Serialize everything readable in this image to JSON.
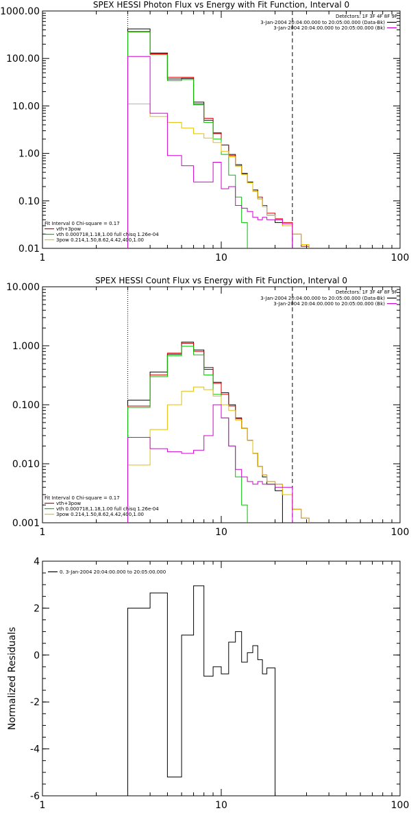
{
  "chart_data": [
    {
      "type": "line",
      "title": "SPEX HESSI Photon Flux vs Energy with Fit Function, Interval 0",
      "xlabel": "",
      "ylabel": "",
      "xscale": "log",
      "yscale": "log",
      "xlim": [
        1,
        100
      ],
      "ylim": [
        0.01,
        1000
      ],
      "xticks": [
        1,
        10,
        100
      ],
      "xticklabels": [
        "1",
        "10",
        "100"
      ],
      "yticks": [
        0.01,
        0.1,
        1,
        10,
        100,
        1000
      ],
      "yticklabels": [
        "0.01",
        "0.10",
        "1.00",
        "10.00",
        "100.00",
        "1000.00"
      ],
      "detectors_text": "Detectors: 1F 3F 4F 8F 9F",
      "legend_top_right": [
        {
          "text": "3-Jan-2004 20:04:00.000 to 20:05:00.000 (Data-Bk)",
          "color": "#000000"
        },
        {
          "text": "3-Jan-2004 20:04:00.000 to 20:05:00.000 (Bk)",
          "color": "#d000d0"
        }
      ],
      "legend_bottom_left": [
        {
          "text": "Fit Interval 0   Chi-square = 0.17",
          "color": "#000000"
        },
        {
          "text": "vth+3pow",
          "color": "#d00000"
        },
        {
          "text": "vth 0.000718,1.18,1.00   full chisq 1.26e-04",
          "color": "#00c000"
        },
        {
          "text": "3pow 0.214,1.50,8.62,4.42,400,1.00",
          "color": "#e0c000"
        }
      ],
      "edges": [
        3,
        4,
        5,
        6,
        7,
        8,
        9,
        10,
        11,
        12,
        13,
        14,
        15,
        16,
        17,
        18,
        20,
        22,
        25,
        28,
        31
      ],
      "series": [
        {
          "name": "Data-Bk",
          "color": "#000000",
          "values": [
            420,
            130,
            37,
            38,
            12,
            5.0,
            2.7,
            1.5,
            0.95,
            0.58,
            0.38,
            0.25,
            0.17,
            0.11,
            0.08,
            0.05,
            0.035,
            0.03
          ]
        },
        {
          "name": "vth+3pow",
          "color": "#d00000",
          "values": [
            370,
            125,
            40,
            40,
            11,
            5.5,
            2.6,
            1.5,
            0.9,
            0.55,
            0.37,
            0.24,
            0.16,
            0.12,
            0.08,
            0.055,
            0.042,
            0.035,
            0.02,
            0.011
          ]
        },
        {
          "name": "vth",
          "color": "#00c000",
          "values": [
            360,
            120,
            34,
            36,
            10.5,
            4.5,
            2.0,
            0.95,
            0.35,
            0.12,
            0.035,
            0.008
          ]
        },
        {
          "name": "3pow",
          "color": "#e0c000",
          "values": [
            11,
            6.0,
            4.5,
            3.4,
            2.6,
            2.1,
            1.7,
            1.1,
            0.85,
            0.54,
            0.36,
            0.24,
            0.16,
            0.11,
            0.075,
            0.05,
            0.04,
            0.03,
            0.02,
            0.012
          ]
        },
        {
          "name": "Bk",
          "color": "#d000d0",
          "values": [
            110,
            7.0,
            0.9,
            0.55,
            0.25,
            0.25,
            0.65,
            0.18,
            0.2,
            0.08,
            0.07,
            0.06,
            0.045,
            0.04,
            0.045,
            0.04,
            0.04,
            0.033,
            0.008
          ]
        }
      ],
      "vlines": [
        {
          "x": 3,
          "style": "dotted"
        },
        {
          "x": 25,
          "style": "dashed"
        }
      ]
    },
    {
      "type": "line",
      "title": "SPEX HESSI Count Flux vs Energy with Fit Function, Interval 0",
      "xlabel": "",
      "ylabel": "",
      "xscale": "log",
      "yscale": "log",
      "xlim": [
        1,
        100
      ],
      "ylim": [
        0.001,
        10
      ],
      "xticks": [
        1,
        10,
        100
      ],
      "xticklabels": [
        "1",
        "10",
        "100"
      ],
      "yticks": [
        0.001,
        0.01,
        0.1,
        1,
        10
      ],
      "yticklabels": [
        "0.001",
        "0.010",
        "0.100",
        "1.000",
        "10.000"
      ],
      "detectors_text": "Detectors: 1F 3F 4F 8F 9F",
      "legend_top_right": [
        {
          "text": "3-Jan-2004 20:04:00.000 to 20:05:00.000 (Data-Bk)",
          "color": "#000000"
        },
        {
          "text": "3-Jan-2004 20:04:00.000 to 20:05:00.000 (Bk)",
          "color": "#d000d0"
        }
      ],
      "legend_bottom_left": [
        {
          "text": "Fit Interval 0   Chi-square = 0.17",
          "color": "#000000"
        },
        {
          "text": "vth+3pow",
          "color": "#d00000"
        },
        {
          "text": "vth 0.000718,1.18,1.00   full chisq 1.26e-04",
          "color": "#00c000"
        },
        {
          "text": "3pow 0.214,1.50,8.62,4.42,400,1.00",
          "color": "#e0c000"
        }
      ],
      "edges": [
        3,
        4,
        5,
        6,
        7,
        8,
        9,
        10,
        11,
        12,
        13,
        14,
        15,
        16,
        17,
        18,
        20,
        22,
        25,
        28,
        31,
        34
      ],
      "series": [
        {
          "name": "Data-Bk",
          "color": "#000000",
          "values": [
            0.12,
            0.36,
            0.72,
            1.15,
            0.85,
            0.4,
            0.24,
            0.16,
            0.1,
            0.06,
            0.04,
            0.025,
            0.015,
            0.009,
            0.006,
            0.0045,
            0.0035
          ]
        },
        {
          "name": "vth+3pow",
          "color": "#d00000",
          "values": [
            0.095,
            0.32,
            0.75,
            1.1,
            0.8,
            0.43,
            0.23,
            0.15,
            0.095,
            0.058,
            0.04,
            0.025,
            0.015,
            0.009,
            0.0065,
            0.005,
            0.0045,
            0.003,
            0.0017,
            0.0012
          ]
        },
        {
          "name": "vth",
          "color": "#00c000",
          "values": [
            0.09,
            0.3,
            0.68,
            0.98,
            0.7,
            0.32,
            0.15,
            0.06,
            0.02,
            0.006,
            0.002,
            0.0006
          ]
        },
        {
          "name": "3pow",
          "color": "#e0c000",
          "values": [
            0.0095,
            0.038,
            0.1,
            0.17,
            0.2,
            0.18,
            0.14,
            0.1,
            0.08,
            0.055,
            0.04,
            0.025,
            0.015,
            0.009,
            0.0065,
            0.005,
            0.0045,
            0.003,
            0.0017,
            0.0012,
            0.0008
          ]
        },
        {
          "name": "Bk",
          "color": "#d000d0",
          "values": [
            0.028,
            0.018,
            0.016,
            0.015,
            0.017,
            0.03,
            0.1,
            0.06,
            0.02,
            0.008,
            0.006,
            0.005,
            0.0045,
            0.005,
            0.0045,
            0.0045,
            0.004,
            0.004
          ]
        }
      ],
      "vlines": [
        {
          "x": 3,
          "style": "dotted"
        },
        {
          "x": 25,
          "style": "dashed"
        }
      ]
    },
    {
      "type": "line",
      "title": "",
      "xlabel": "",
      "ylabel": "Normalized Residuals",
      "xscale": "log",
      "yscale": "linear",
      "xlim": [
        1,
        100
      ],
      "ylim": [
        -6,
        4
      ],
      "xticks": [
        1,
        10,
        100
      ],
      "xticklabels": [
        "1",
        "10",
        "100"
      ],
      "yticks": [
        -6,
        -4,
        -2,
        0,
        2,
        4
      ],
      "yticklabels": [
        "-6",
        "-4",
        "-2",
        "0",
        "2",
        "4"
      ],
      "legend_top_left": [
        {
          "text": "0. 3-Jan-2004 20:04:00.000 to 20:05:00.000",
          "color": "#000000"
        }
      ],
      "edges": [
        3,
        4,
        5,
        6,
        7,
        8,
        9,
        10,
        11,
        12,
        13,
        14,
        15,
        16,
        17,
        18,
        20,
        22,
        25
      ],
      "series": [
        {
          "name": "0",
          "color": "#000000",
          "values": [
            2.0,
            2.65,
            -5.2,
            0.85,
            2.95,
            -0.9,
            -0.5,
            -0.8,
            0.55,
            1.0,
            -0.3,
            0.1,
            0.4,
            -0.2,
            -0.8,
            -0.55
          ]
        }
      ],
      "residual_start": -6
    }
  ]
}
